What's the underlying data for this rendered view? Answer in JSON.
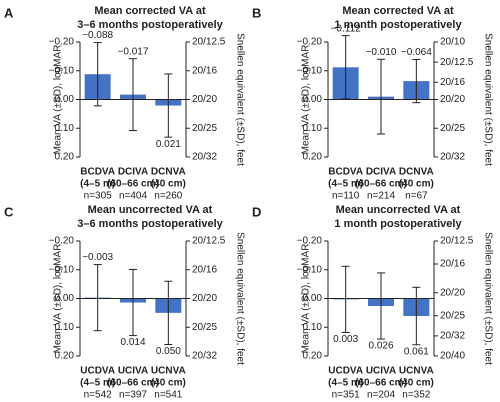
{
  "chart_data": [
    {
      "type": "bar",
      "panel_label": "A",
      "title": [
        "Mean corrected VA at",
        "3–6 months postoperatively"
      ],
      "ylabel": "Mean VA (±SD), logMAR",
      "y2label": "Snellen equivalent (±SD), feet",
      "categories": [
        [
          "BCDVA",
          "(4–5 m)"
        ],
        [
          "DCIVA",
          "(60–66 cm)"
        ],
        [
          "DCNVA",
          "(40 cm)"
        ]
      ],
      "n_labels": [
        "n=305",
        "n=404",
        "n=260"
      ],
      "values": [
        -0.088,
        -0.017,
        0.021
      ],
      "value_labels": [
        "−0.088",
        "−0.017",
        "0.021"
      ],
      "errors": [
        0.11,
        0.125,
        0.11
      ],
      "color": "#4472c4",
      "ylim": [
        -0.2,
        0.2
      ],
      "yinvert": true,
      "yticks": [
        {
          "value": -0.2,
          "label": "−0.20"
        },
        {
          "value": -0.1,
          "label": "−0.10"
        },
        {
          "value": 0,
          "label": "0.00"
        },
        {
          "value": 0.1,
          "label": "0.10"
        },
        {
          "value": 0.2,
          "label": "0.20"
        }
      ],
      "y2lim": [
        -0.2,
        0.2
      ],
      "y2ticks": [
        {
          "value": -0.2,
          "label": "20/12.5"
        },
        {
          "value": -0.1,
          "label": "20/16"
        },
        {
          "value": 0,
          "label": "20/20"
        },
        {
          "value": 0.1,
          "label": "20/25"
        },
        {
          "value": 0.2,
          "label": "20/32"
        }
      ]
    },
    {
      "type": "bar",
      "panel_label": "B",
      "title": [
        "Mean corrected VA at",
        "1 month postoperatively"
      ],
      "ylabel": "Mean VA (±SD), logMAR",
      "y2label": "Snellen equivalent (±SD), feet",
      "categories": [
        [
          "BCDVA",
          "(4–5 m)"
        ],
        [
          "DCIVA",
          "(60–66 cm)"
        ],
        [
          "DCNVA",
          "(40 cm)"
        ]
      ],
      "n_labels": [
        "n=110",
        "n=214",
        "n=67"
      ],
      "values": [
        -0.112,
        -0.01,
        -0.064
      ],
      "value_labels": [
        "−0.112",
        "−0.010",
        "−0.064"
      ],
      "errors": [
        0.11,
        0.13,
        0.075
      ],
      "color": "#4472c4",
      "ylim": [
        -0.2,
        0.2
      ],
      "yinvert": true,
      "yticks": [
        {
          "value": -0.2,
          "label": "−0.20"
        },
        {
          "value": -0.1,
          "label": "−0.10"
        },
        {
          "value": 0,
          "label": "0.00"
        },
        {
          "value": 0.1,
          "label": "0.10"
        },
        {
          "value": 0.2,
          "label": "0.20"
        }
      ],
      "y2lim": [
        -0.2,
        0.2
      ],
      "y2ticks": [
        {
          "value": -0.2,
          "label": "20/10"
        },
        {
          "value": -0.13,
          "label": "20/12.5"
        },
        {
          "value": -0.06,
          "label": "20/16"
        },
        {
          "value": 0,
          "label": "20/20"
        },
        {
          "value": 0.1,
          "label": "20/25"
        },
        {
          "value": 0.2,
          "label": "20/32"
        }
      ]
    },
    {
      "type": "bar",
      "panel_label": "C",
      "title": [
        "Mean uncorrected VA at",
        "3–6 months postoperatively"
      ],
      "ylabel": "Mean VA (±SD), logMAR",
      "y2label": "Snellen equivalent (±SD), feet",
      "categories": [
        [
          "UCDVA",
          "(4–5 m)"
        ],
        [
          "UCIVA",
          "(60–66 cm)"
        ],
        [
          "UCNVA",
          "(40 cm)"
        ]
      ],
      "n_labels": [
        "n=542",
        "n=397",
        "n=541"
      ],
      "values": [
        -0.003,
        0.014,
        0.05
      ],
      "value_labels": [
        "−0.003",
        "0.014",
        "0.050"
      ],
      "errors": [
        0.115,
        0.115,
        0.11
      ],
      "color": "#4472c4",
      "ylim": [
        -0.2,
        0.2
      ],
      "yinvert": true,
      "yticks": [
        {
          "value": -0.2,
          "label": "−0.20"
        },
        {
          "value": -0.1,
          "label": "−0.10"
        },
        {
          "value": 0,
          "label": "0.00"
        },
        {
          "value": 0.1,
          "label": "0.10"
        },
        {
          "value": 0.2,
          "label": "0.20"
        }
      ],
      "y2lim": [
        -0.2,
        0.2
      ],
      "y2ticks": [
        {
          "value": -0.2,
          "label": "20/12.5"
        },
        {
          "value": -0.1,
          "label": "20/16"
        },
        {
          "value": 0,
          "label": "20/20"
        },
        {
          "value": 0.1,
          "label": "20/25"
        },
        {
          "value": 0.2,
          "label": "20/32"
        }
      ]
    },
    {
      "type": "bar",
      "panel_label": "D",
      "title": [
        "Mean uncorrected VA at",
        "1 month postoperatively"
      ],
      "ylabel": "Mean VA (±SD), logMAR",
      "y2label": "Snellen equivalent (±SD), feet",
      "categories": [
        [
          "UCDVA",
          "(4–5 m)"
        ],
        [
          "UCIVA",
          "(60–66 cm)"
        ],
        [
          "UCNVA",
          "(40 cm)"
        ]
      ],
      "n_labels": [
        "n=351",
        "n=204",
        "n=352"
      ],
      "values": [
        0.003,
        0.026,
        0.061
      ],
      "value_labels": [
        "0.003",
        "0.026",
        "0.061"
      ],
      "errors": [
        0.115,
        0.115,
        0.1
      ],
      "color": "#4472c4",
      "ylim": [
        -0.2,
        0.2
      ],
      "yinvert": true,
      "yticks": [
        {
          "value": -0.2,
          "label": "−0.20"
        },
        {
          "value": -0.1,
          "label": "−0.10"
        },
        {
          "value": 0,
          "label": "0.00"
        },
        {
          "value": 0.1,
          "label": "0.10"
        },
        {
          "value": 0.2,
          "label": "0.20"
        }
      ],
      "y2lim": [
        -0.2,
        0.2
      ],
      "y2ticks": [
        {
          "value": -0.2,
          "label": "20/12.5"
        },
        {
          "value": -0.12,
          "label": "20/16"
        },
        {
          "value": -0.02,
          "label": "20/20"
        },
        {
          "value": 0.06,
          "label": "20/25"
        },
        {
          "value": 0.13,
          "label": "20/32"
        },
        {
          "value": 0.2,
          "label": "20/40"
        }
      ]
    }
  ]
}
